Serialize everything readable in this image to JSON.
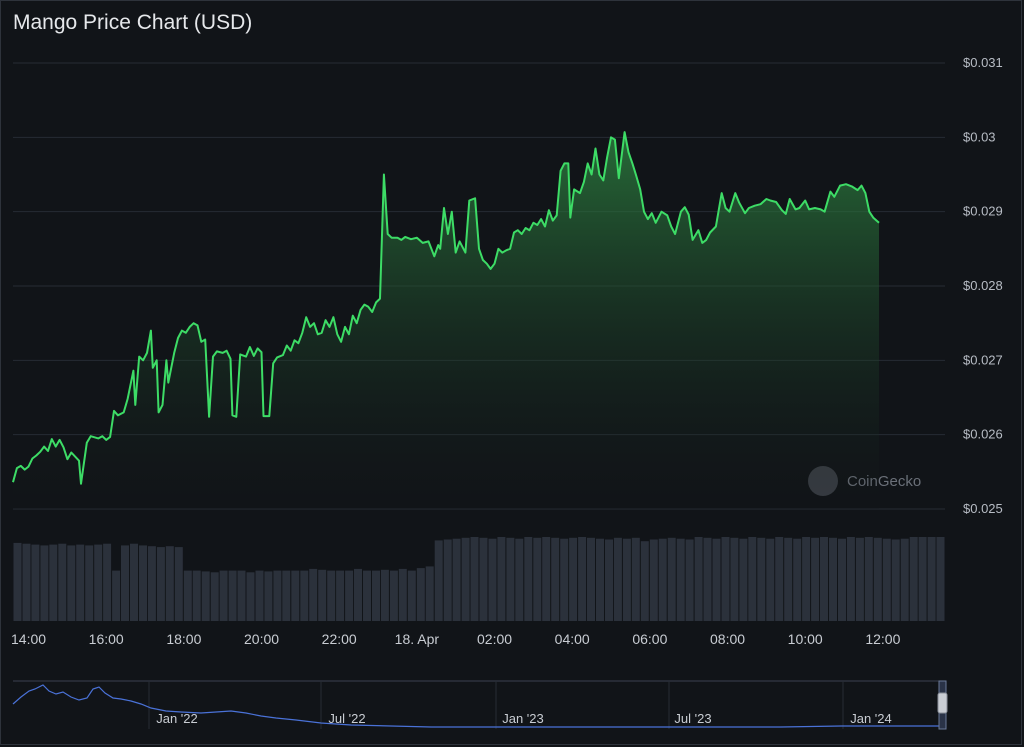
{
  "title": "Mango Price Chart (USD)",
  "watermark": "CoinGecko",
  "colors": {
    "background": "#111418",
    "line": "#3ddc66",
    "grid": "#262b33",
    "volume": "#2b313b",
    "navigator": "#4a72d8"
  },
  "chart_data": {
    "type": "line",
    "title": "Mango Price Chart (USD)",
    "ylabel": "",
    "ylim": [
      0.025,
      0.031
    ],
    "y_ticks": [
      "$0.031",
      "$0.03",
      "$0.029",
      "$0.028",
      "$0.027",
      "$0.026",
      "$0.025"
    ],
    "x_ticks": [
      "14:00",
      "16:00",
      "18:00",
      "20:00",
      "22:00",
      "18. Apr",
      "02:00",
      "04:00",
      "06:00",
      "08:00",
      "10:00",
      "12:00"
    ],
    "x_range_hours": [
      13.6,
      37.6
    ],
    "series": [
      {
        "values": [
          [
            13.6,
            0.02536
          ],
          [
            13.7,
            0.02555
          ],
          [
            13.8,
            0.02558
          ],
          [
            13.9,
            0.02553
          ],
          [
            14.0,
            0.02557
          ],
          [
            14.1,
            0.02568
          ],
          [
            14.2,
            0.02572
          ],
          [
            14.3,
            0.02577
          ],
          [
            14.4,
            0.02584
          ],
          [
            14.5,
            0.02578
          ],
          [
            14.6,
            0.02594
          ],
          [
            14.7,
            0.02584
          ],
          [
            14.8,
            0.02593
          ],
          [
            14.9,
            0.02583
          ],
          [
            15.0,
            0.02567
          ],
          [
            15.1,
            0.02576
          ],
          [
            15.3,
            0.02565
          ],
          [
            15.35,
            0.02534
          ],
          [
            15.5,
            0.02589
          ],
          [
            15.6,
            0.02598
          ],
          [
            15.8,
            0.02595
          ],
          [
            15.9,
            0.02598
          ],
          [
            16.0,
            0.02593
          ],
          [
            16.1,
            0.02597
          ],
          [
            16.2,
            0.02632
          ],
          [
            16.3,
            0.02626
          ],
          [
            16.45,
            0.0263
          ],
          [
            16.55,
            0.02648
          ],
          [
            16.7,
            0.02686
          ],
          [
            16.75,
            0.0264
          ],
          [
            16.85,
            0.02705
          ],
          [
            16.95,
            0.027
          ],
          [
            17.05,
            0.0271
          ],
          [
            17.15,
            0.0274
          ],
          [
            17.2,
            0.0269
          ],
          [
            17.3,
            0.027
          ],
          [
            17.35,
            0.0263
          ],
          [
            17.45,
            0.0264
          ],
          [
            17.55,
            0.027
          ],
          [
            17.6,
            0.0267
          ],
          [
            17.75,
            0.0271
          ],
          [
            17.85,
            0.0273
          ],
          [
            17.95,
            0.0274
          ],
          [
            18.05,
            0.02737
          ],
          [
            18.15,
            0.02745
          ],
          [
            18.25,
            0.0275
          ],
          [
            18.35,
            0.02747
          ],
          [
            18.45,
            0.02725
          ],
          [
            18.55,
            0.02728
          ],
          [
            18.65,
            0.02624
          ],
          [
            18.75,
            0.02705
          ],
          [
            18.85,
            0.02712
          ],
          [
            19.0,
            0.0271
          ],
          [
            19.1,
            0.02713
          ],
          [
            19.2,
            0.02702
          ],
          [
            19.25,
            0.02626
          ],
          [
            19.35,
            0.02624
          ],
          [
            19.45,
            0.02708
          ],
          [
            19.6,
            0.02705
          ],
          [
            19.7,
            0.02718
          ],
          [
            19.8,
            0.02706
          ],
          [
            19.9,
            0.02716
          ],
          [
            20.0,
            0.02711
          ],
          [
            20.05,
            0.02625
          ],
          [
            20.2,
            0.02625
          ],
          [
            20.3,
            0.02696
          ],
          [
            20.4,
            0.02704
          ],
          [
            20.55,
            0.02707
          ],
          [
            20.65,
            0.0272
          ],
          [
            20.75,
            0.02713
          ],
          [
            20.85,
            0.02727
          ],
          [
            20.95,
            0.02723
          ],
          [
            21.05,
            0.02737
          ],
          [
            21.15,
            0.02758
          ],
          [
            21.25,
            0.02745
          ],
          [
            21.35,
            0.0275
          ],
          [
            21.45,
            0.02735
          ],
          [
            21.55,
            0.02737
          ],
          [
            21.65,
            0.02754
          ],
          [
            21.75,
            0.02745
          ],
          [
            21.85,
            0.02758
          ],
          [
            21.95,
            0.02735
          ],
          [
            22.05,
            0.02725
          ],
          [
            22.15,
            0.02745
          ],
          [
            22.25,
            0.02735
          ],
          [
            22.35,
            0.0276
          ],
          [
            22.45,
            0.0275
          ],
          [
            22.55,
            0.02768
          ],
          [
            22.65,
            0.02775
          ],
          [
            22.75,
            0.02772
          ],
          [
            22.85,
            0.02765
          ],
          [
            22.95,
            0.02778
          ],
          [
            23.05,
            0.02783
          ],
          [
            23.15,
            0.0295
          ],
          [
            23.25,
            0.0287
          ],
          [
            23.35,
            0.02865
          ],
          [
            23.5,
            0.02865
          ],
          [
            23.6,
            0.02862
          ],
          [
            23.7,
            0.02866
          ],
          [
            23.85,
            0.02863
          ],
          [
            24.0,
            0.02865
          ],
          [
            24.15,
            0.02858
          ],
          [
            24.3,
            0.0286
          ],
          [
            24.45,
            0.0284
          ],
          [
            24.55,
            0.02855
          ],
          [
            24.6,
            0.0285
          ],
          [
            24.7,
            0.02905
          ],
          [
            24.8,
            0.0287
          ],
          [
            24.9,
            0.029
          ],
          [
            25.0,
            0.02845
          ],
          [
            25.1,
            0.0286
          ],
          [
            25.25,
            0.02845
          ],
          [
            25.35,
            0.02915
          ],
          [
            25.5,
            0.02918
          ],
          [
            25.6,
            0.0285
          ],
          [
            25.7,
            0.02835
          ],
          [
            25.8,
            0.0283
          ],
          [
            25.9,
            0.02823
          ],
          [
            26.0,
            0.0283
          ],
          [
            26.1,
            0.0285
          ],
          [
            26.2,
            0.02845
          ],
          [
            26.3,
            0.02848
          ],
          [
            26.4,
            0.0285
          ],
          [
            26.5,
            0.02872
          ],
          [
            26.6,
            0.02875
          ],
          [
            26.7,
            0.0287
          ],
          [
            26.8,
            0.02878
          ],
          [
            26.9,
            0.02875
          ],
          [
            27.0,
            0.02885
          ],
          [
            27.1,
            0.02882
          ],
          [
            27.2,
            0.0289
          ],
          [
            27.3,
            0.0288
          ],
          [
            27.4,
            0.02902
          ],
          [
            27.5,
            0.02888
          ],
          [
            27.6,
            0.02895
          ],
          [
            27.7,
            0.02955
          ],
          [
            27.8,
            0.02965
          ],
          [
            27.9,
            0.02965
          ],
          [
            27.95,
            0.02892
          ],
          [
            28.05,
            0.0293
          ],
          [
            28.2,
            0.02925
          ],
          [
            28.3,
            0.0294
          ],
          [
            28.4,
            0.02965
          ],
          [
            28.5,
            0.0295
          ],
          [
            28.6,
            0.02985
          ],
          [
            28.7,
            0.0295
          ],
          [
            28.8,
            0.02942
          ],
          [
            28.9,
            0.02973
          ],
          [
            29.0,
            0.03
          ],
          [
            29.1,
            0.02997
          ],
          [
            29.2,
            0.02945
          ],
          [
            29.35,
            0.03007
          ],
          [
            29.45,
            0.0298
          ],
          [
            29.55,
            0.02965
          ],
          [
            29.65,
            0.02948
          ],
          [
            29.75,
            0.0293
          ],
          [
            29.85,
            0.029
          ],
          [
            29.95,
            0.0289
          ],
          [
            30.05,
            0.02898
          ],
          [
            30.15,
            0.02885
          ],
          [
            30.3,
            0.029
          ],
          [
            30.45,
            0.02895
          ],
          [
            30.55,
            0.0288
          ],
          [
            30.65,
            0.0287
          ],
          [
            30.8,
            0.029
          ],
          [
            30.9,
            0.02906
          ],
          [
            31.0,
            0.02896
          ],
          [
            31.1,
            0.02862
          ],
          [
            31.25,
            0.02875
          ],
          [
            31.35,
            0.02858
          ],
          [
            31.45,
            0.02862
          ],
          [
            31.55,
            0.02872
          ],
          [
            31.7,
            0.0288
          ],
          [
            31.85,
            0.02925
          ],
          [
            31.95,
            0.02905
          ],
          [
            32.05,
            0.029
          ],
          [
            32.2,
            0.02925
          ],
          [
            32.3,
            0.02912
          ],
          [
            32.45,
            0.02898
          ],
          [
            32.55,
            0.02905
          ],
          [
            32.7,
            0.02908
          ],
          [
            32.85,
            0.0291
          ],
          [
            33.0,
            0.02917
          ],
          [
            33.1,
            0.02915
          ],
          [
            33.25,
            0.02913
          ],
          [
            33.4,
            0.02902
          ],
          [
            33.5,
            0.02897
          ],
          [
            33.6,
            0.02917
          ],
          [
            33.75,
            0.02903
          ],
          [
            33.85,
            0.02905
          ],
          [
            34.0,
            0.02915
          ],
          [
            34.1,
            0.02903
          ],
          [
            34.25,
            0.02905
          ],
          [
            34.4,
            0.02903
          ],
          [
            34.5,
            0.029
          ],
          [
            34.65,
            0.02927
          ],
          [
            34.75,
            0.0292
          ],
          [
            34.9,
            0.02935
          ],
          [
            35.05,
            0.02937
          ],
          [
            35.2,
            0.02934
          ],
          [
            35.35,
            0.02929
          ],
          [
            35.45,
            0.02935
          ],
          [
            35.55,
            0.02925
          ],
          [
            35.65,
            0.029
          ],
          [
            35.75,
            0.02892
          ],
          [
            35.9,
            0.02885
          ]
        ]
      }
    ],
    "volume": {
      "normalized_heights": [
        0.93,
        0.92,
        0.91,
        0.9,
        0.91,
        0.92,
        0.9,
        0.91,
        0.9,
        0.91,
        0.92,
        0.6,
        0.9,
        0.92,
        0.9,
        0.89,
        0.88,
        0.89,
        0.88,
        0.6,
        0.6,
        0.59,
        0.58,
        0.6,
        0.6,
        0.6,
        0.58,
        0.6,
        0.59,
        0.6,
        0.6,
        0.6,
        0.6,
        0.62,
        0.61,
        0.6,
        0.6,
        0.6,
        0.62,
        0.6,
        0.6,
        0.61,
        0.6,
        0.62,
        0.6,
        0.63,
        0.65,
        0.96,
        0.97,
        0.98,
        0.99,
        1.0,
        0.99,
        0.98,
        1.0,
        0.99,
        0.98,
        1.0,
        0.99,
        1.0,
        0.99,
        0.98,
        0.99,
        1.0,
        0.99,
        0.98,
        0.97,
        0.99,
        0.98,
        0.99,
        0.95,
        0.97,
        0.98,
        0.99,
        0.98,
        0.97,
        1.0,
        0.99,
        0.98,
        1.0,
        0.99,
        0.98,
        1.0,
        0.99,
        0.98,
        1.0,
        0.99,
        0.98,
        1.0,
        0.99,
        1.0,
        0.99,
        0.98,
        1.0,
        0.99,
        1.0,
        0.99,
        0.98,
        0.97,
        0.98,
        1.0,
        1.0,
        1.0,
        1.0
      ]
    }
  },
  "navigator": {
    "labels": [
      "Jan '22",
      "Jul '22",
      "Jan '23",
      "Jul '23",
      "Jan '24"
    ]
  }
}
